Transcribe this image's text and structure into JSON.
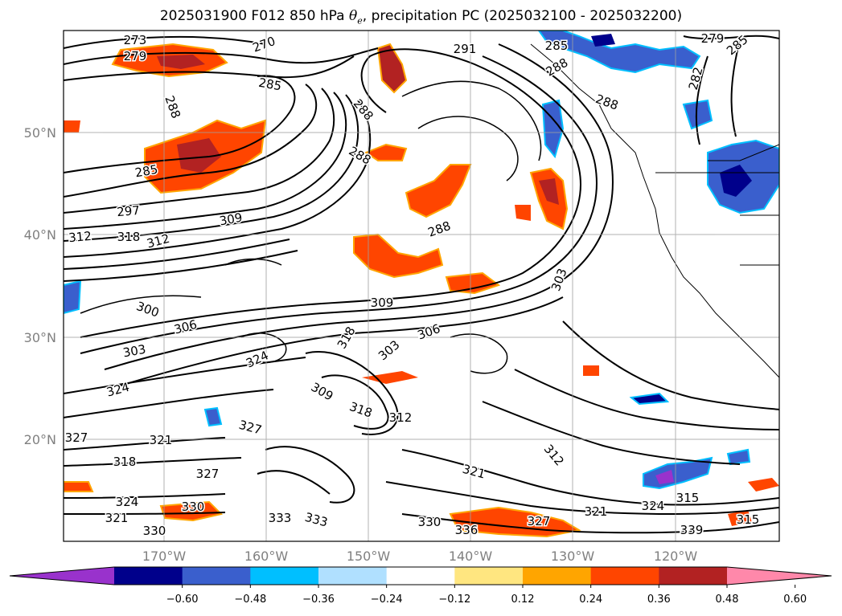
{
  "title": {
    "prefix": "2025031900 F012 850 hPa ",
    "symbol": "θ",
    "symbol_sub": "e",
    "suffix": ", precipitation PC (2025032100 - 2025032200)"
  },
  "latitude_labels": [
    "50°N",
    "40°N",
    "30°N",
    "20°N"
  ],
  "longitude_labels": [
    "170°W",
    "160°W",
    "150°W",
    "140°W",
    "130°W",
    "120°W"
  ],
  "contour_labels": [
    "273",
    "279",
    "270",
    "285",
    "288",
    "285",
    "297",
    "309",
    "312",
    "318",
    "312",
    "300",
    "306",
    "303",
    "324",
    "324",
    "327",
    "321",
    "318",
    "327",
    "327",
    "324",
    "330",
    "321",
    "330",
    "333",
    "333",
    "291",
    "285",
    "288",
    "288",
    "309",
    "318",
    "303",
    "306",
    "309",
    "318",
    "312",
    "321",
    "303",
    "312",
    "321",
    "324",
    "315",
    "339",
    "330",
    "336",
    "327",
    "288",
    "288",
    "282",
    "279",
    "285",
    "288",
    "315"
  ],
  "colorbar": {
    "ticks": [
      "−0.60",
      "−0.48",
      "−0.36",
      "−0.24",
      "−0.12",
      "0.12",
      "0.24",
      "0.36",
      "0.48",
      "0.60"
    ],
    "colors": [
      "#9932cc",
      "#00008b",
      "#3a5fcd",
      "#00bfff",
      "#b0e0ff",
      "#ffffff",
      "#ffe680",
      "#ffa500",
      "#ff4500",
      "#b22222",
      "#ff88aa"
    ]
  }
}
